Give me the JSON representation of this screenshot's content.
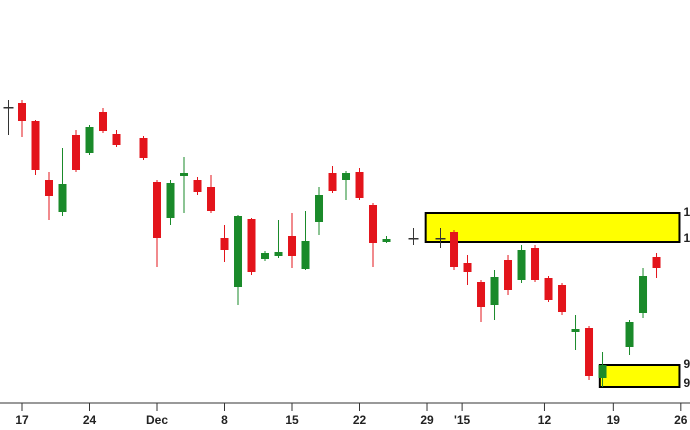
{
  "chart_data": {
    "type": "candlestick",
    "x": [
      -1,
      0,
      1,
      2,
      3,
      4,
      5,
      6,
      7,
      9,
      10,
      11,
      12,
      13,
      14,
      15,
      16,
      17,
      18,
      19,
      20,
      21,
      22,
      23,
      24,
      25,
      26,
      27,
      29,
      31,
      32,
      33,
      34,
      35,
      36,
      37,
      38,
      39,
      40,
      41,
      42,
      43,
      45,
      46,
      47
    ],
    "open": [
      323,
      327,
      309,
      250,
      218,
      295,
      277,
      318,
      296,
      292,
      248,
      212,
      254,
      250,
      243,
      192,
      143,
      211,
      171,
      174,
      194,
      161,
      208,
      257,
      250,
      258,
      225,
      188,
      192,
      192,
      198,
      167,
      148,
      125,
      170,
      150,
      182,
      152,
      145,
      98,
      102,
      52,
      83,
      117,
      173
    ],
    "high": [
      330,
      330,
      310,
      258,
      282,
      300,
      305,
      322,
      300,
      294,
      250,
      250,
      273,
      253,
      255,
      205,
      215,
      212,
      179,
      210,
      217,
      219,
      243,
      264,
      259,
      262,
      227,
      194,
      202,
      202,
      200,
      175,
      150,
      160,
      175,
      185,
      185,
      154,
      147,
      115,
      104,
      78,
      110,
      162,
      177
    ],
    "low": [
      295,
      293,
      255,
      210,
      214,
      258,
      275,
      297,
      283,
      270,
      163,
      205,
      217,
      235,
      217,
      168,
      125,
      155,
      169,
      172,
      162,
      160,
      195,
      237,
      230,
      230,
      163,
      187,
      185,
      182,
      160,
      145,
      108,
      110,
      135,
      147,
      148,
      128,
      115,
      80,
      50,
      43,
      75,
      112,
      152
    ],
    "close": [
      323,
      309,
      260,
      234,
      246,
      260,
      303,
      299,
      285,
      272,
      192,
      247,
      257,
      238,
      219,
      180,
      214,
      158,
      177,
      178,
      174,
      189,
      235,
      239,
      257,
      232,
      187,
      191,
      192,
      192,
      163,
      158,
      123,
      153,
      140,
      180,
      150,
      130,
      118,
      101,
      54,
      65,
      108,
      154,
      162
    ],
    "up_color": "#1a8a2a",
    "down_color": "#e3141b",
    "flat_color": "#333333",
    "xlim": [
      -1.63,
      49.48
    ],
    "ylim": [
      30,
      430
    ],
    "xticks": [
      {
        "value": 0,
        "label": "17"
      },
      {
        "value": 5,
        "label": "24"
      },
      {
        "value": 10,
        "label": "Dec"
      },
      {
        "value": 15,
        "label": "8"
      },
      {
        "value": 20,
        "label": "15"
      },
      {
        "value": 25,
        "label": "22"
      },
      {
        "value": 30,
        "label": "29"
      },
      {
        "value": 32.6,
        "label": "'15"
      },
      {
        "value": 38.7,
        "label": "12"
      },
      {
        "value": 43.8,
        "label": "19"
      },
      {
        "value": 48.8,
        "label": "26"
      }
    ],
    "zones": [
      {
        "x0": 29.9,
        "x1": 48.7,
        "top": 217,
        "bottom": 188,
        "color": "#ffff00",
        "top_label": "1",
        "bottom_label": "1"
      },
      {
        "x0": 42.8,
        "x1": 48.7,
        "top": 65,
        "bottom": 43,
        "color": "#ffff00",
        "top_label": "9",
        "bottom_label": "9"
      }
    ]
  }
}
